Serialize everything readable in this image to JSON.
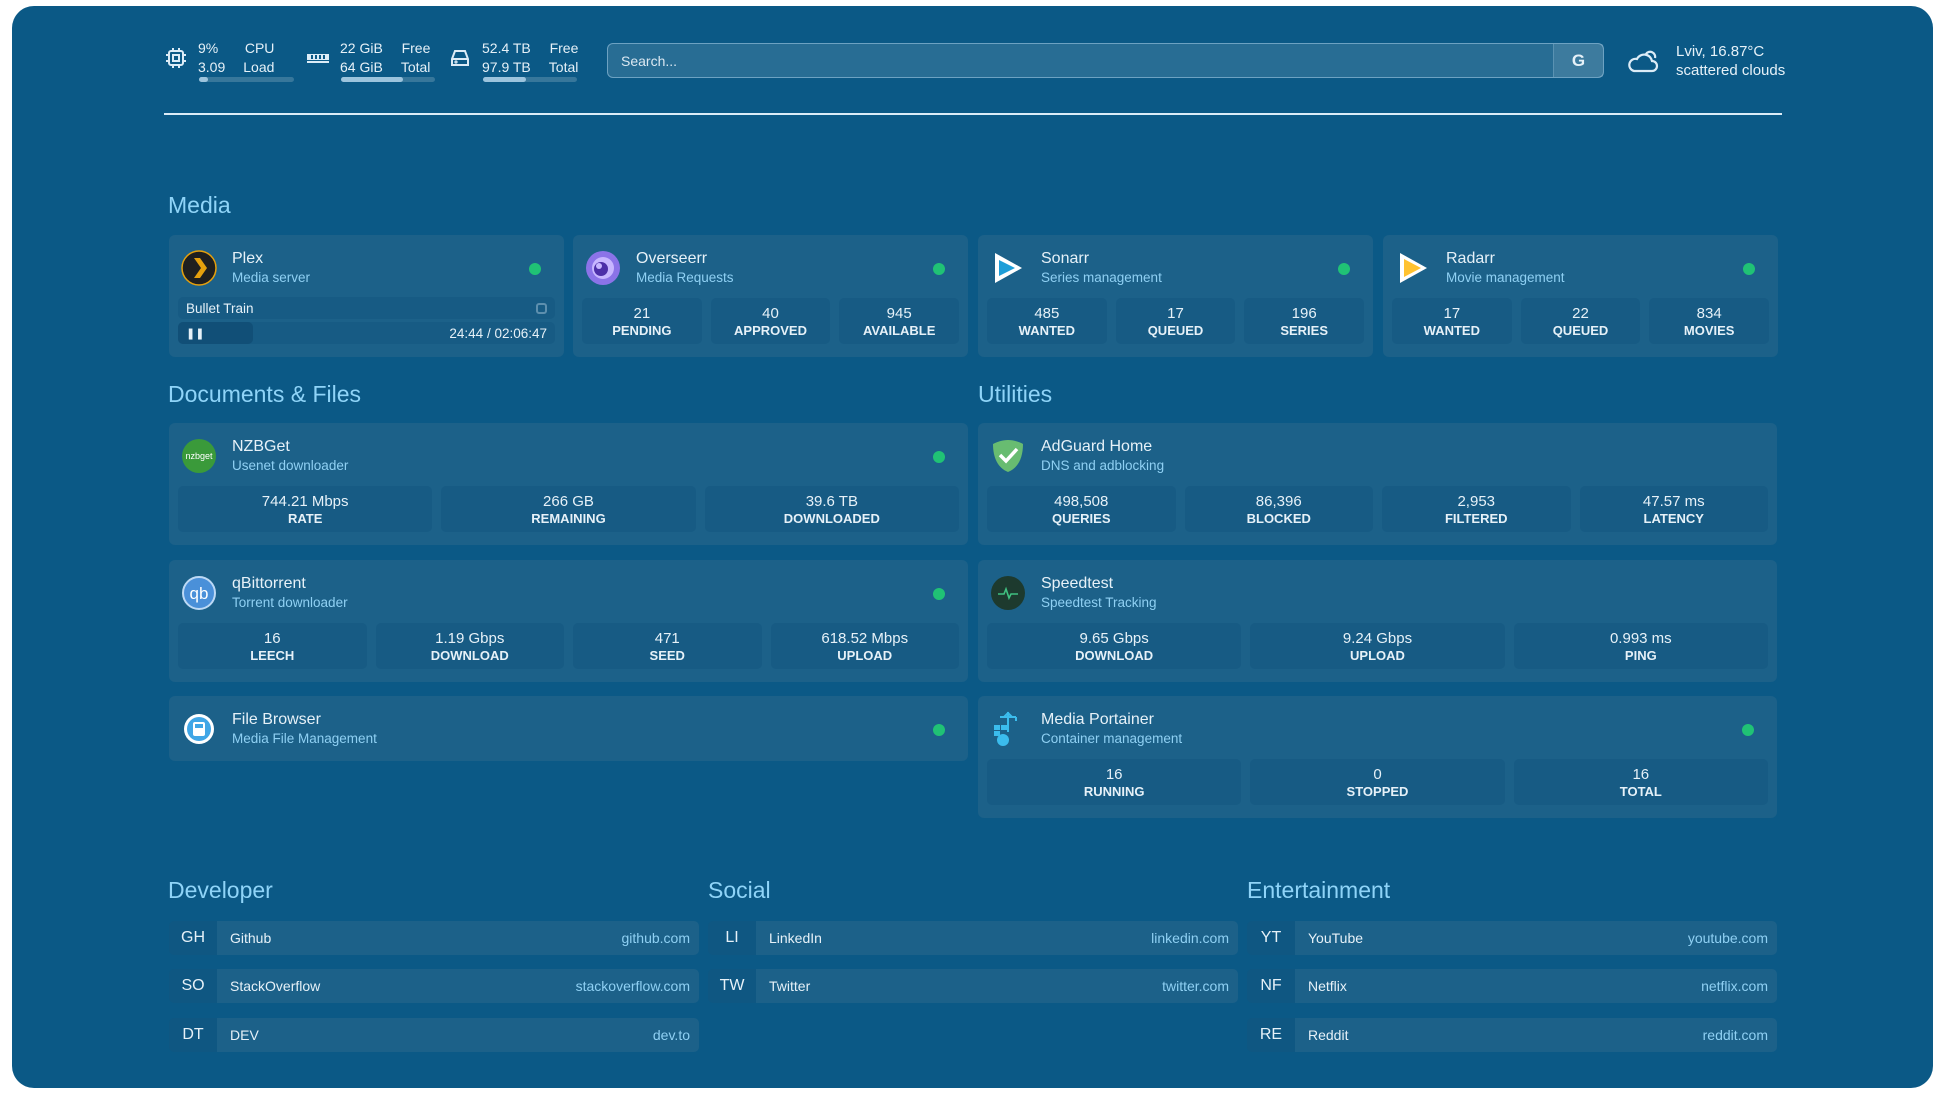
{
  "header": {
    "cpu": {
      "icon": "cpu-icon",
      "value1": "9%",
      "label1": "CPU",
      "value2": "3.09",
      "label2": "Load",
      "usage_percent": 9
    },
    "memory": {
      "icon": "memory-icon",
      "value1": "22 GiB",
      "label1": "Free",
      "value2": "64 GiB",
      "label2": "Total",
      "usage_percent": 66
    },
    "disk": {
      "icon": "disk-icon",
      "value1": "52.4 TB",
      "label1": "Free",
      "value2": "97.9 TB",
      "label2": "Total",
      "usage_percent": 46
    },
    "search": {
      "placeholder": "Search...",
      "provider": "G"
    },
    "weather": {
      "icon": "cloud-icon",
      "location": "Lviv, 16.87°C",
      "condition": "scattered clouds"
    }
  },
  "sections": {
    "media": "Media",
    "docs": "Documents & Files",
    "utilities": "Utilities",
    "developer": "Developer",
    "social": "Social",
    "entertainment": "Entertainment"
  },
  "status_color": "#20c275",
  "media": [
    {
      "name": "Plex",
      "sub": "Media server",
      "now_playing": "Bullet Train",
      "time": "24:44 / 02:06:47",
      "progress_percent": 20
    },
    {
      "name": "Overseerr",
      "sub": "Media Requests",
      "stats": [
        {
          "v": "21",
          "l": "PENDING"
        },
        {
          "v": "40",
          "l": "APPROVED"
        },
        {
          "v": "945",
          "l": "AVAILABLE"
        }
      ]
    },
    {
      "name": "Sonarr",
      "sub": "Series management",
      "stats": [
        {
          "v": "485",
          "l": "WANTED"
        },
        {
          "v": "17",
          "l": "QUEUED"
        },
        {
          "v": "196",
          "l": "SERIES"
        }
      ]
    },
    {
      "name": "Radarr",
      "sub": "Movie management",
      "stats": [
        {
          "v": "17",
          "l": "WANTED"
        },
        {
          "v": "22",
          "l": "QUEUED"
        },
        {
          "v": "834",
          "l": "MOVIES"
        }
      ]
    }
  ],
  "docs": [
    {
      "name": "NZBGet",
      "sub": "Usenet downloader",
      "logo_text": "nzbget",
      "stats": [
        {
          "v": "744.21 Mbps",
          "l": "RATE"
        },
        {
          "v": "266 GB",
          "l": "REMAINING"
        },
        {
          "v": "39.6 TB",
          "l": "DOWNLOADED"
        }
      ]
    },
    {
      "name": "qBittorrent",
      "sub": "Torrent downloader",
      "logo_text": "qb",
      "stats": [
        {
          "v": "16",
          "l": "LEECH"
        },
        {
          "v": "1.19 Gbps",
          "l": "DOWNLOAD"
        },
        {
          "v": "471",
          "l": "SEED"
        },
        {
          "v": "618.52 Mbps",
          "l": "UPLOAD"
        }
      ]
    },
    {
      "name": "File Browser",
      "sub": "Media File Management"
    }
  ],
  "utilities": [
    {
      "name": "AdGuard Home",
      "sub": "DNS and adblocking",
      "stats": [
        {
          "v": "498,508",
          "l": "QUERIES"
        },
        {
          "v": "86,396",
          "l": "BLOCKED"
        },
        {
          "v": "2,953",
          "l": "FILTERED"
        },
        {
          "v": "47.57 ms",
          "l": "LATENCY"
        }
      ]
    },
    {
      "name": "Speedtest",
      "sub": "Speedtest Tracking",
      "stats": [
        {
          "v": "9.65 Gbps",
          "l": "DOWNLOAD"
        },
        {
          "v": "9.24 Gbps",
          "l": "UPLOAD"
        },
        {
          "v": "0.993 ms",
          "l": "PING"
        }
      ]
    },
    {
      "name": "Media Portainer",
      "sub": "Container management",
      "stats": [
        {
          "v": "16",
          "l": "RUNNING"
        },
        {
          "v": "0",
          "l": "STOPPED"
        },
        {
          "v": "16",
          "l": "TOTAL"
        }
      ]
    }
  ],
  "bookmarks": {
    "developer": [
      {
        "a": "GH",
        "n": "Github",
        "u": "github.com"
      },
      {
        "a": "SO",
        "n": "StackOverflow",
        "u": "stackoverflow.com"
      },
      {
        "a": "DT",
        "n": "DEV",
        "u": "dev.to"
      }
    ],
    "social": [
      {
        "a": "LI",
        "n": "LinkedIn",
        "u": "linkedin.com"
      },
      {
        "a": "TW",
        "n": "Twitter",
        "u": "twitter.com"
      }
    ],
    "entertainment": [
      {
        "a": "YT",
        "n": "YouTube",
        "u": "youtube.com"
      },
      {
        "a": "NF",
        "n": "Netflix",
        "u": "netflix.com"
      },
      {
        "a": "RE",
        "n": "Reddit",
        "u": "reddit.com"
      }
    ]
  }
}
